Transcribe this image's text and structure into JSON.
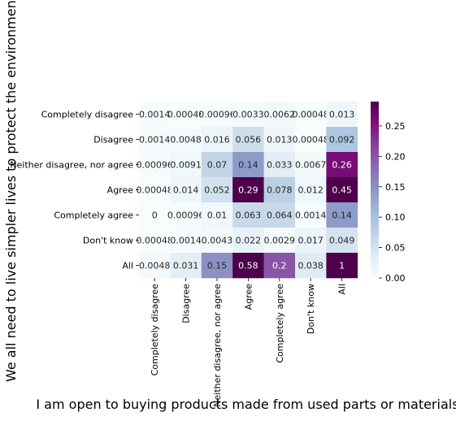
{
  "chart_data": {
    "type": "heatmap",
    "title": "",
    "xlabel": "I am open to buying products made from used parts or materials.",
    "ylabel": "We all need to live simpler lives to protect the environment",
    "x_categories": [
      "Completely disagree",
      "Disagree",
      "Neither disagree, nor agree",
      "Agree",
      "Completely agree",
      "Don't know",
      "All"
    ],
    "y_categories": [
      "Completely disagree",
      "Disagree",
      "Neither disagree, nor agree",
      "Agree",
      "Completely agree",
      "Don't know",
      "All"
    ],
    "values": [
      [
        0.0014,
        0.00048,
        0.00096,
        0.0033,
        0.0062,
        0.00048,
        0.013
      ],
      [
        0.0014,
        0.0048,
        0.016,
        0.056,
        0.013,
        0.00048,
        0.092
      ],
      [
        0.00096,
        0.0091,
        0.07,
        0.14,
        0.033,
        0.0067,
        0.26
      ],
      [
        0.00048,
        0.014,
        0.052,
        0.29,
        0.078,
        0.012,
        0.45
      ],
      [
        0,
        0.00096,
        0.01,
        0.063,
        0.064,
        0.0014,
        0.14
      ],
      [
        0.00048,
        0.0014,
        0.0043,
        0.022,
        0.0029,
        0.017,
        0.049
      ],
      [
        0.0048,
        0.031,
        0.15,
        0.58,
        0.2,
        0.038,
        1
      ]
    ],
    "value_labels": [
      [
        "0.0014",
        "0.00048",
        "0.00096",
        "0.0033",
        "0.0062",
        "0.00048",
        "0.013"
      ],
      [
        "0.0014",
        "0.0048",
        "0.016",
        "0.056",
        "0.013",
        "0.00048",
        "0.092"
      ],
      [
        "0.00096",
        "0.0091",
        "0.07",
        "0.14",
        "0.033",
        "0.0067",
        "0.26"
      ],
      [
        "0.00048",
        "0.014",
        "0.052",
        "0.29",
        "0.078",
        "0.012",
        "0.45"
      ],
      [
        "0",
        "0.00096",
        "0.01",
        "0.063",
        "0.064",
        "0.0014",
        "0.14"
      ],
      [
        "0.00048",
        "0.0014",
        "0.0043",
        "0.022",
        "0.0029",
        "0.017",
        "0.049"
      ],
      [
        "0.0048",
        "0.031",
        "0.15",
        "0.58",
        "0.2",
        "0.038",
        "1"
      ]
    ],
    "colorbar": {
      "min": 0,
      "max": 0.29,
      "ticks": [
        0.0,
        0.05,
        0.1,
        0.15,
        0.2,
        0.25
      ],
      "tick_labels": [
        "0.00",
        "0.05",
        "0.10",
        "0.15",
        "0.20",
        "0.25"
      ]
    },
    "colormap": "BuPu",
    "colormap_stops": [
      "#f7fcfd",
      "#e0ecf4",
      "#bfd3e6",
      "#9ebcda",
      "#8c96c6",
      "#8c6bb1",
      "#88419d",
      "#810f7c",
      "#4d004b"
    ],
    "grid": false,
    "legend": "colorbar-right"
  }
}
